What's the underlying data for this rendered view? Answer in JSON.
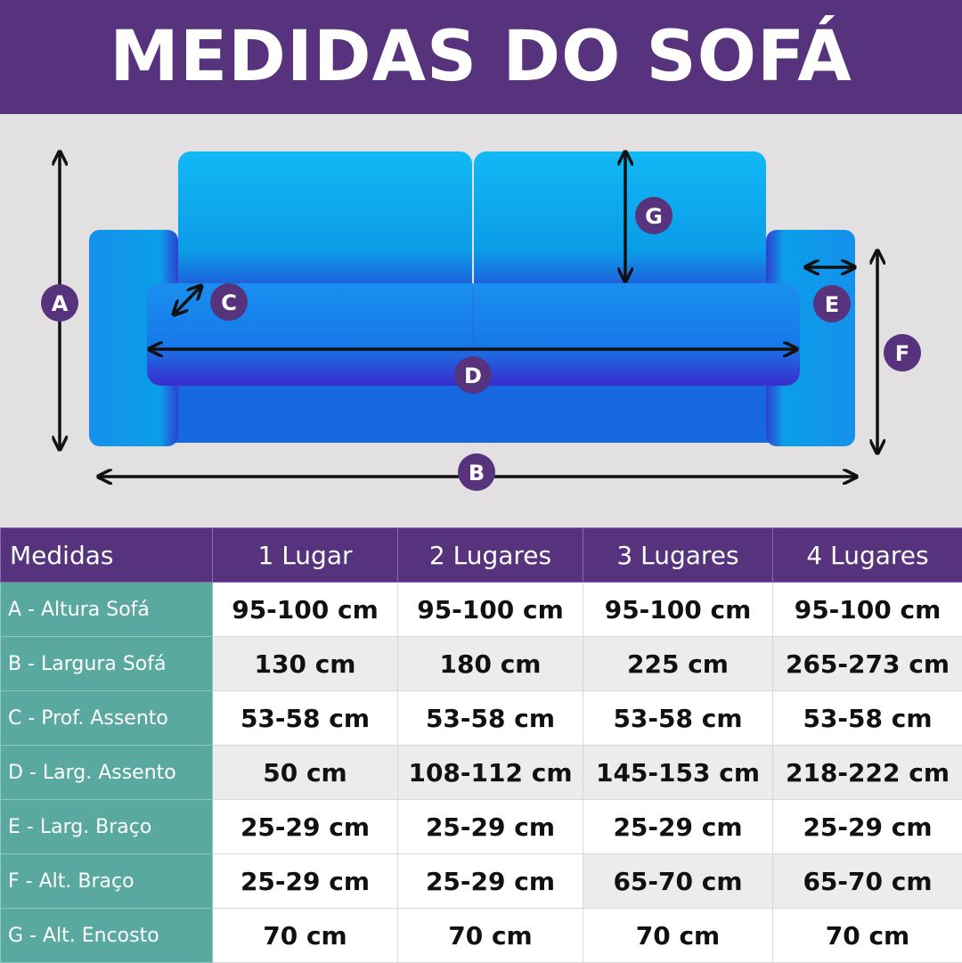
{
  "title": "MEDIDAS DO SOFÁ",
  "colors": {
    "header_purple": "#56337c",
    "label_teal": "#5aa9a0",
    "sofa_blue": "#0aa8f0",
    "background": "#e2e0e1"
  },
  "diagram": {
    "labels": {
      "A": "A",
      "B": "B",
      "C": "C",
      "D": "D",
      "E": "E",
      "F": "F",
      "G": "G"
    }
  },
  "table": {
    "headers": [
      "Medidas",
      "1 Lugar",
      "2 Lugares",
      "3 Lugares",
      "4 Lugares"
    ],
    "rows": [
      {
        "label": "A - Altura Sofá",
        "values": [
          "95-100 cm",
          "95-100 cm",
          "95-100 cm",
          "95-100 cm"
        ]
      },
      {
        "label": "B - Largura Sofá",
        "values": [
          "130 cm",
          "180 cm",
          "225 cm",
          "265-273 cm"
        ]
      },
      {
        "label": "C - Prof. Assento",
        "values": [
          "53-58 cm",
          "53-58 cm",
          "53-58 cm",
          "53-58 cm"
        ]
      },
      {
        "label": "D - Larg. Assento",
        "values": [
          "50 cm",
          "108-112 cm",
          "145-153 cm",
          "218-222 cm"
        ]
      },
      {
        "label": "E - Larg. Braço",
        "values": [
          "25-29 cm",
          "25-29 cm",
          "25-29 cm",
          "25-29 cm"
        ]
      },
      {
        "label": "F - Alt. Braço",
        "values": [
          "25-29 cm",
          "25-29 cm",
          "65-70 cm",
          "65-70 cm"
        ]
      },
      {
        "label": "G - Alt. Encosto",
        "values": [
          "70 cm",
          "70 cm",
          "70 cm",
          "70 cm"
        ]
      }
    ]
  }
}
